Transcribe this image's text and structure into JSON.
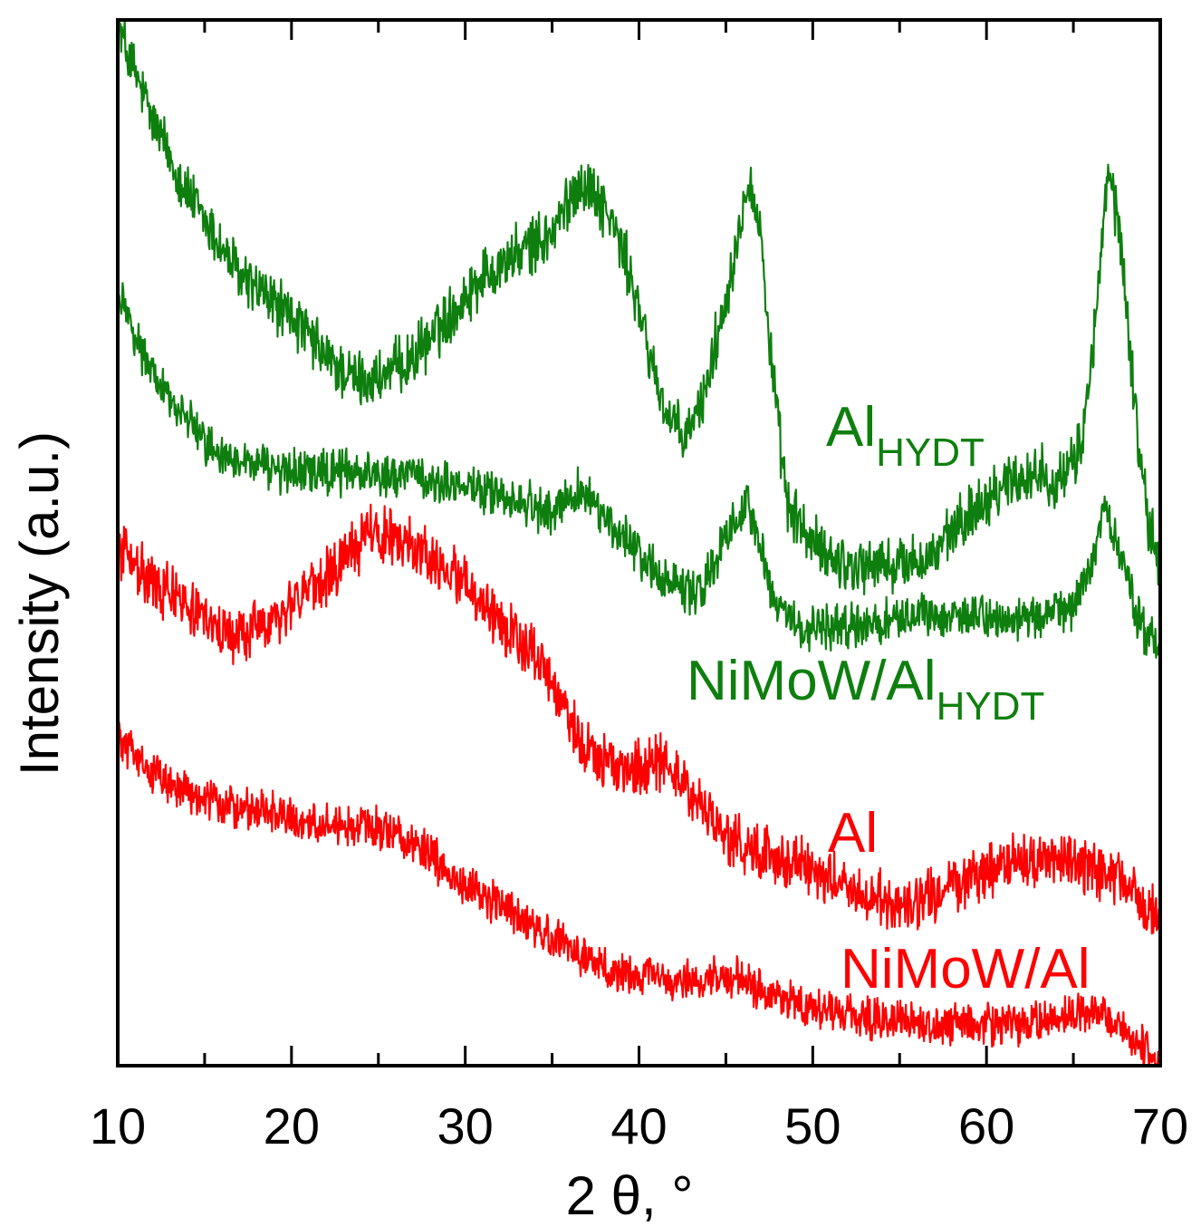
{
  "chart_data": {
    "type": "line",
    "title": "",
    "xlabel": "2 θ, °",
    "ylabel": "Intensity (a.u.)",
    "xlim": [
      10,
      70
    ],
    "ylim": [
      0,
      1
    ],
    "y_ticks_labeled": false,
    "xticks": [
      10,
      20,
      30,
      40,
      50,
      60,
      70
    ],
    "xtick_labels": [
      "10",
      "20",
      "30",
      "40",
      "50",
      "60",
      "70"
    ],
    "colors": {
      "green": "#0e7f0e",
      "red": "#ff0000",
      "axis": "#000000"
    },
    "series": [
      {
        "name": "AlHYDT",
        "label_main": "Al",
        "label_sub": "HYDT",
        "color": "#0e7f0e",
        "noise": 0.022,
        "points": [
          [
            10,
            1.0
          ],
          [
            12,
            0.91
          ],
          [
            14,
            0.84
          ],
          [
            17,
            0.76
          ],
          [
            20,
            0.72
          ],
          [
            22,
            0.68
          ],
          [
            23.5,
            0.66
          ],
          [
            25,
            0.66
          ],
          [
            27,
            0.68
          ],
          [
            29,
            0.72
          ],
          [
            31,
            0.76
          ],
          [
            33,
            0.78
          ],
          [
            35,
            0.8
          ],
          [
            36.5,
            0.85
          ],
          [
            37.5,
            0.84
          ],
          [
            38.5,
            0.81
          ],
          [
            39.5,
            0.76
          ],
          [
            40.5,
            0.69
          ],
          [
            41.5,
            0.63
          ],
          [
            42.5,
            0.6
          ],
          [
            43.5,
            0.63
          ],
          [
            44.5,
            0.7
          ],
          [
            45.5,
            0.78
          ],
          [
            46.3,
            0.86
          ],
          [
            47,
            0.8
          ],
          [
            47.7,
            0.66
          ],
          [
            48.5,
            0.54
          ],
          [
            50,
            0.5
          ],
          [
            52,
            0.48
          ],
          [
            55,
            0.48
          ],
          [
            57,
            0.49
          ],
          [
            59,
            0.53
          ],
          [
            61,
            0.56
          ],
          [
            63,
            0.57
          ],
          [
            64.5,
            0.56
          ],
          [
            65.5,
            0.6
          ],
          [
            66.3,
            0.72
          ],
          [
            67,
            0.86
          ],
          [
            67.7,
            0.8
          ],
          [
            68.5,
            0.64
          ],
          [
            69.3,
            0.52
          ],
          [
            70,
            0.48
          ]
        ]
      },
      {
        "name": "NiMoW/AlHYDT",
        "label_main": "NiMoW/Al",
        "label_sub": "HYDT",
        "color": "#0e7f0e",
        "noise": 0.017,
        "points": [
          [
            10,
            0.75
          ],
          [
            11.5,
            0.68
          ],
          [
            13,
            0.64
          ],
          [
            15,
            0.6
          ],
          [
            17,
            0.58
          ],
          [
            20,
            0.57
          ],
          [
            23,
            0.57
          ],
          [
            26,
            0.57
          ],
          [
            29,
            0.56
          ],
          [
            32,
            0.55
          ],
          [
            35,
            0.53
          ],
          [
            36.5,
            0.55
          ],
          [
            37.5,
            0.54
          ],
          [
            38.5,
            0.52
          ],
          [
            40,
            0.49
          ],
          [
            41.5,
            0.47
          ],
          [
            43,
            0.45
          ],
          [
            44.3,
            0.48
          ],
          [
            45.3,
            0.52
          ],
          [
            46.2,
            0.54
          ],
          [
            47,
            0.5
          ],
          [
            47.8,
            0.44
          ],
          [
            49,
            0.42
          ],
          [
            52,
            0.42
          ],
          [
            56,
            0.43
          ],
          [
            60,
            0.43
          ],
          [
            63,
            0.43
          ],
          [
            65,
            0.44
          ],
          [
            66,
            0.48
          ],
          [
            66.8,
            0.53
          ],
          [
            67.5,
            0.5
          ],
          [
            68.5,
            0.44
          ],
          [
            69.3,
            0.41
          ],
          [
            70,
            0.4
          ]
        ]
      },
      {
        "name": "Al",
        "label_main": "Al",
        "label_sub": "",
        "color": "#ff0000",
        "noise": 0.022,
        "points": [
          [
            10,
            0.5
          ],
          [
            11.5,
            0.47
          ],
          [
            13,
            0.45
          ],
          [
            15,
            0.43
          ],
          [
            16,
            0.41
          ],
          [
            18,
            0.42
          ],
          [
            20,
            0.44
          ],
          [
            22.5,
            0.48
          ],
          [
            24.5,
            0.51
          ],
          [
            26,
            0.51
          ],
          [
            28,
            0.49
          ],
          [
            30,
            0.46
          ],
          [
            32,
            0.43
          ],
          [
            34,
            0.39
          ],
          [
            35.5,
            0.35
          ],
          [
            36.5,
            0.31
          ],
          [
            38,
            0.29
          ],
          [
            39.5,
            0.28
          ],
          [
            41,
            0.29
          ],
          [
            42,
            0.28
          ],
          [
            43.5,
            0.25
          ],
          [
            45,
            0.22
          ],
          [
            47,
            0.2
          ],
          [
            49,
            0.19
          ],
          [
            52,
            0.17
          ],
          [
            55,
            0.15
          ],
          [
            58,
            0.17
          ],
          [
            61,
            0.19
          ],
          [
            64,
            0.2
          ],
          [
            66,
            0.19
          ],
          [
            68,
            0.17
          ],
          [
            70,
            0.14
          ]
        ]
      },
      {
        "name": "NiMoW/Al",
        "label_main": "NiMoW/Al",
        "label_sub": "",
        "color": "#ff0000",
        "noise": 0.016,
        "points": [
          [
            10,
            0.31
          ],
          [
            12,
            0.28
          ],
          [
            14,
            0.26
          ],
          [
            16,
            0.25
          ],
          [
            19,
            0.24
          ],
          [
            22,
            0.23
          ],
          [
            24,
            0.23
          ],
          [
            26,
            0.22
          ],
          [
            28,
            0.2
          ],
          [
            30,
            0.17
          ],
          [
            32,
            0.15
          ],
          [
            34,
            0.13
          ],
          [
            36,
            0.11
          ],
          [
            38,
            0.09
          ],
          [
            40,
            0.08
          ],
          [
            42,
            0.08
          ],
          [
            44,
            0.08
          ],
          [
            46,
            0.08
          ],
          [
            48,
            0.06
          ],
          [
            51,
            0.05
          ],
          [
            54,
            0.04
          ],
          [
            58,
            0.035
          ],
          [
            62,
            0.035
          ],
          [
            65,
            0.045
          ],
          [
            66.5,
            0.05
          ],
          [
            68,
            0.03
          ],
          [
            69.3,
            0.01
          ],
          [
            70,
            0.0
          ]
        ]
      }
    ]
  }
}
